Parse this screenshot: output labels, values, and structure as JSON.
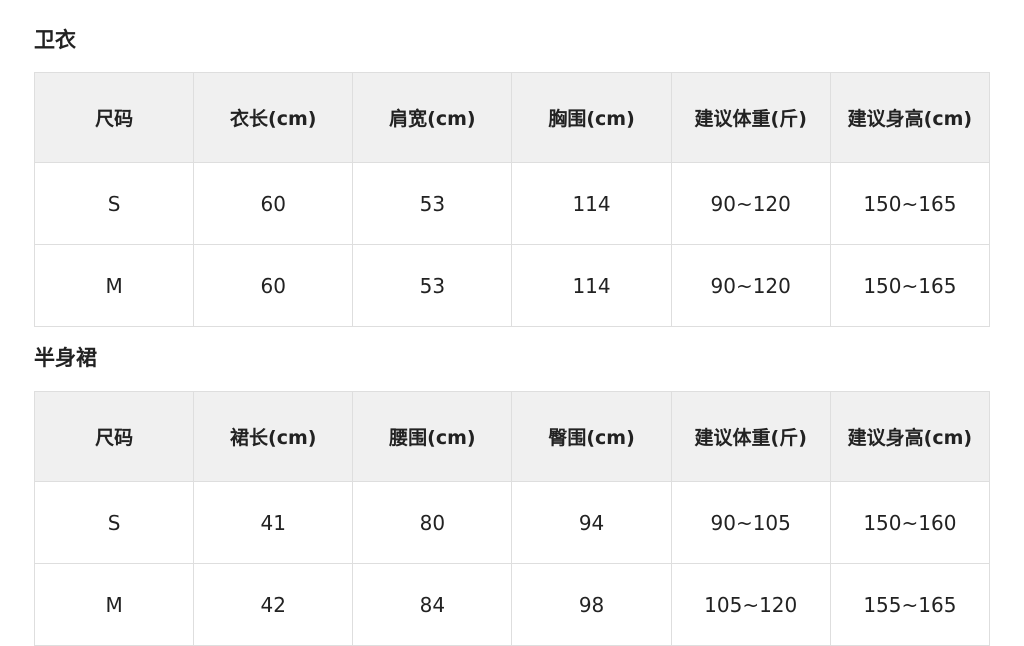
{
  "sections": [
    {
      "title": "卫衣",
      "headers": [
        "尺码",
        "衣长(cm)",
        "肩宽(cm)",
        "胸围(cm)",
        "建议体重(斤)",
        "建议身高(cm)"
      ],
      "rows": [
        [
          "S",
          "60",
          "53",
          "114",
          "90~120",
          "150~165"
        ],
        [
          "M",
          "60",
          "53",
          "114",
          "90~120",
          "150~165"
        ]
      ]
    },
    {
      "title": "半身裙",
      "headers": [
        "尺码",
        "裙长(cm)",
        "腰围(cm)",
        "臀围(cm)",
        "建议体重(斤)",
        "建议身高(cm)"
      ],
      "rows": [
        [
          "S",
          "41",
          "80",
          "94",
          "90~105",
          "150~160"
        ],
        [
          "M",
          "42",
          "84",
          "98",
          "105~120",
          "155~165"
        ]
      ]
    }
  ]
}
